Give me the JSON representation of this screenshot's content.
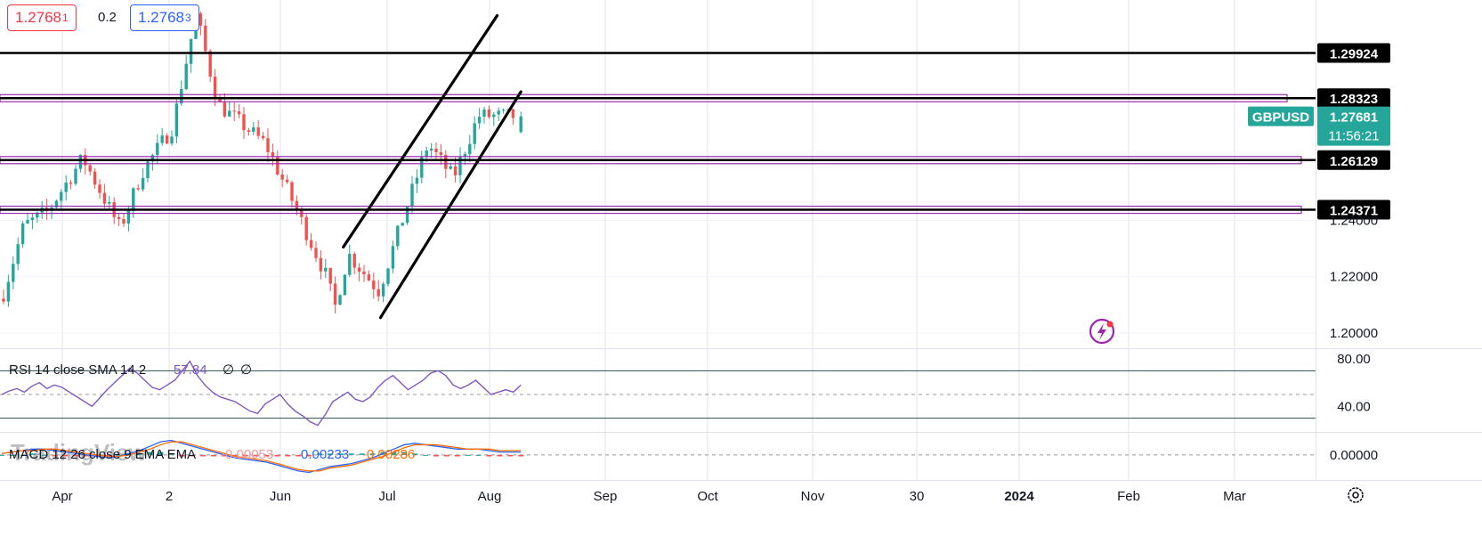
{
  "symbol": "GBPUSD",
  "quote": {
    "bid": "1.2768",
    "bid_digit": "1",
    "spread": "0.2",
    "ask": "1.2768",
    "ask_digit": "3"
  },
  "last_price": {
    "value": "1.27681",
    "countdown": "11:56:21"
  },
  "watermark": "TradingView",
  "colors": {
    "up": "#26a69a",
    "down": "#ef5350",
    "levels": "#9c27b0",
    "trendlines": "#000000",
    "label_green": "#26a69a",
    "rsi": "#7e57c2",
    "macd": "#2962ff",
    "signal": "#ff6d00"
  },
  "chart_data": [
    {
      "type": "candlestick",
      "title": "GBPUSD",
      "ylim": [
        1.195,
        1.318
      ],
      "x_tick_labels": [
        "Apr",
        "2",
        "Jun",
        "Jul",
        "Aug",
        "Sep",
        "Oct",
        "Nov",
        "30",
        "2024",
        "Feb",
        "Mar"
      ],
      "y_tick_labels": [
        "1.20000",
        "1.22000",
        "1.24000"
      ],
      "key_levels": [
        {
          "label": "1.29924",
          "value": 1.29924,
          "style": "solid"
        },
        {
          "label": "1.28323",
          "value": 1.28323,
          "style": "band"
        },
        {
          "label": "1.26129",
          "value": 1.26129,
          "style": "band"
        },
        {
          "label": "1.24371",
          "value": 1.24371,
          "style": "band"
        }
      ],
      "channel": {
        "upper": [
          [
            "2023-10-09",
            1.2305
          ],
          [
            "2024-01-08",
            1.3125
          ]
        ],
        "lower": [
          [
            "2023-10-31",
            1.2055
          ],
          [
            "2024-01-22",
            1.2855
          ]
        ]
      },
      "anchors": [
        [
          "2023-03-20",
          1.21
        ],
        [
          "2023-04-03",
          1.238
        ],
        [
          "2023-04-17",
          1.243
        ],
        [
          "2023-05-08",
          1.262
        ],
        [
          "2023-05-30",
          1.237
        ],
        [
          "2023-06-12",
          1.257
        ],
        [
          "2023-06-30",
          1.273
        ],
        [
          "2023-07-14",
          1.313
        ],
        [
          "2023-07-27",
          1.281
        ],
        [
          "2023-08-24",
          1.267
        ],
        [
          "2023-09-08",
          1.248
        ],
        [
          "2023-09-29",
          1.22
        ],
        [
          "2023-10-04",
          1.209
        ],
        [
          "2023-10-12",
          1.228
        ],
        [
          "2023-10-30",
          1.215
        ],
        [
          "2023-11-14",
          1.242
        ],
        [
          "2023-11-28",
          1.267
        ],
        [
          "2023-12-13",
          1.255
        ],
        [
          "2023-12-28",
          1.277
        ],
        [
          "2024-01-22",
          1.2768
        ]
      ],
      "last": {
        "open": 1.2712,
        "high": 1.2785,
        "low": 1.2708,
        "close": 1.27681
      }
    },
    {
      "type": "line",
      "title": "RSI 14 close SMA 14 2",
      "value_label": "57.84",
      "extra_labels": [
        "∅",
        "∅"
      ],
      "ylim": [
        20,
        86
      ],
      "y_tick_labels": [
        "80.00",
        "40.00"
      ],
      "bands": [
        70,
        30
      ],
      "midline": 50,
      "series": [
        {
          "values": [
            50,
            53,
            55,
            52,
            57,
            60,
            55,
            58,
            56,
            52,
            48,
            44,
            40,
            47,
            54,
            60,
            66,
            72,
            68,
            62,
            56,
            54,
            58,
            62,
            70,
            78,
            66,
            58,
            52,
            48,
            46,
            44,
            40,
            36,
            34,
            42,
            46,
            50,
            42,
            36,
            32,
            27,
            24,
            33,
            44,
            48,
            52,
            46,
            44,
            48,
            56,
            62,
            66,
            60,
            54,
            58,
            62,
            68,
            70,
            66,
            58,
            55,
            58,
            62,
            56,
            50,
            52,
            54,
            52,
            58
          ]
        }
      ]
    },
    {
      "type": "bar",
      "title": "MACD 12 26 close 9 EMA EMA",
      "value_labels": [
        "-0.00053",
        "0.00233",
        "0.00286"
      ],
      "ylim": [
        -0.016,
        0.014
      ],
      "y_tick_labels": [
        "0.00000"
      ],
      "zero_line": 0.0,
      "macd": [
        0.001,
        0.002,
        0.003,
        0.004,
        0.004,
        0.003,
        0.002,
        0.001,
        0.0,
        -0.001,
        -0.002,
        -0.001,
        0.001,
        0.003,
        0.006,
        0.009,
        0.01,
        0.008,
        0.006,
        0.004,
        0.002,
        0.0,
        -0.002,
        -0.003,
        -0.004,
        -0.005,
        -0.007,
        -0.009,
        -0.011,
        -0.012,
        -0.01,
        -0.008,
        -0.007,
        -0.006,
        -0.004,
        -0.002,
        0.001,
        0.004,
        0.007,
        0.008,
        0.007,
        0.006,
        0.005,
        0.004,
        0.004,
        0.004,
        0.003,
        0.002,
        0.002,
        0.002
      ],
      "signal": [
        0.001,
        0.002,
        0.003,
        0.003,
        0.004,
        0.004,
        0.003,
        0.002,
        0.001,
        0.0,
        -0.001,
        -0.001,
        0.0,
        0.002,
        0.004,
        0.007,
        0.009,
        0.009,
        0.007,
        0.005,
        0.003,
        0.001,
        -0.001,
        -0.002,
        -0.003,
        -0.004,
        -0.006,
        -0.008,
        -0.01,
        -0.011,
        -0.011,
        -0.009,
        -0.008,
        -0.007,
        -0.005,
        -0.003,
        -0.001,
        0.002,
        0.005,
        0.007,
        0.007,
        0.007,
        0.006,
        0.005,
        0.004,
        0.004,
        0.004,
        0.003,
        0.003,
        0.003
      ]
    }
  ]
}
